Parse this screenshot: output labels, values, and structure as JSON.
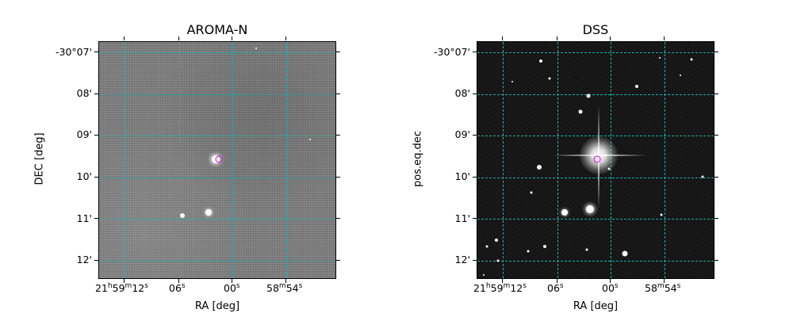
{
  "panels": [
    {
      "title": "AROMA-N",
      "xlabel": "RA [deg]",
      "ylabel": "DEC [deg]"
    },
    {
      "title": "DSS",
      "xlabel": "RA [deg]",
      "ylabel": "pos.eq.dec"
    }
  ],
  "y_ticks": [
    "-30°07'",
    "08'",
    "09'",
    "10'",
    "11'",
    "12'"
  ],
  "x_ticks": {
    "t1": {
      "h": "21",
      "m": "59",
      "s": "12",
      "hs": "h",
      "ms": "m",
      "ss": "s"
    },
    "t2": {
      "v": "06",
      "s": "s"
    },
    "t3": {
      "v": "00",
      "s": "s"
    },
    "t4": {
      "m": "58",
      "v": "54",
      "ms": "m",
      "s": "s"
    }
  },
  "colors": {
    "grid": "#17b0b0",
    "target_marker": "#e000e0"
  }
}
